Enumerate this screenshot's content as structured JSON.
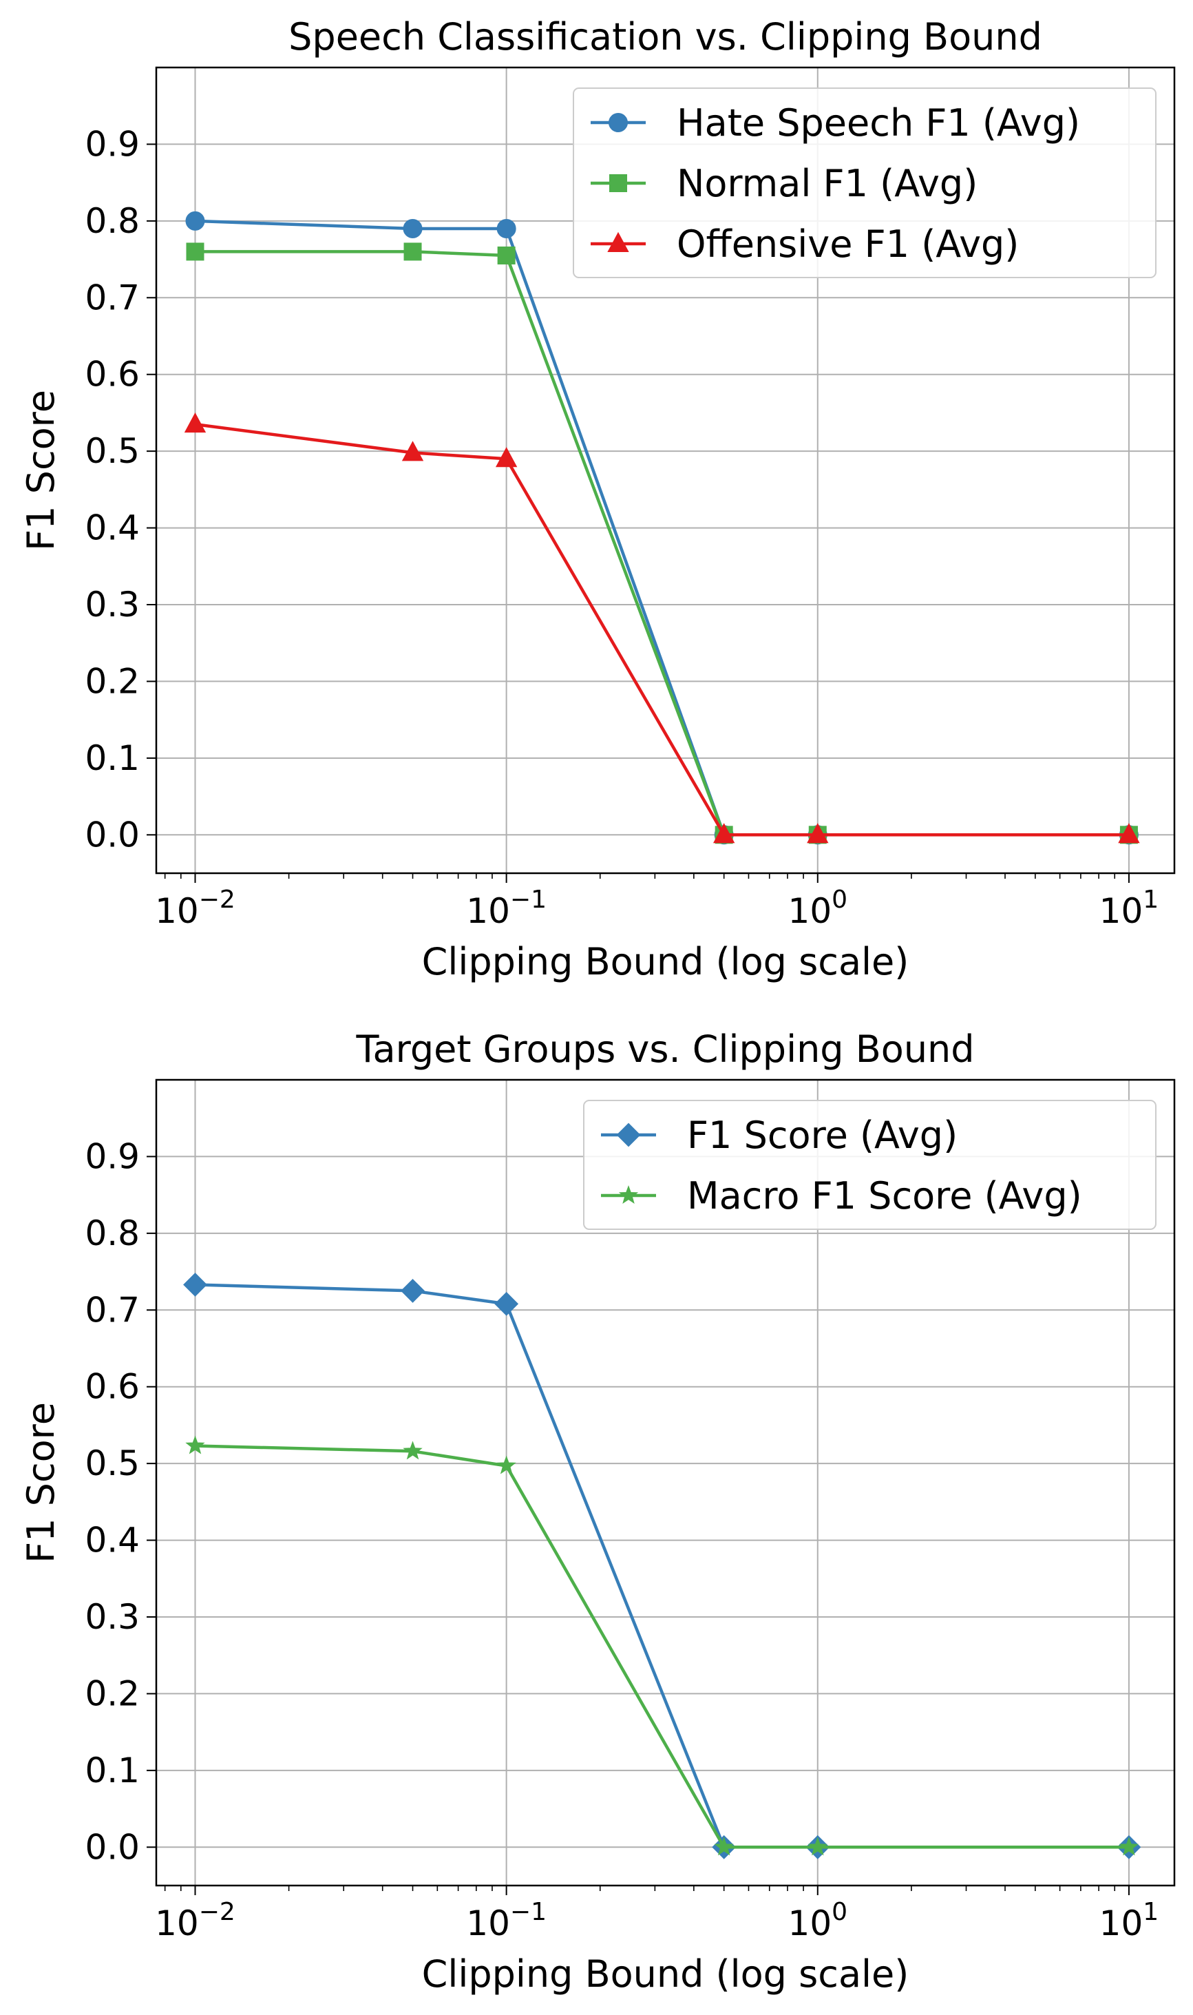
{
  "chart_data": [
    {
      "type": "line",
      "title": "Speech Classification vs. Clipping Bound",
      "xlabel": "Clipping Bound (log scale)",
      "ylabel": "F1 Score",
      "xscale": "log",
      "xlim": [
        0.0075,
        14
      ],
      "ylim": [
        -0.05,
        1.0
      ],
      "xticks": [
        {
          "value": 0.01,
          "base": "10",
          "exp": "−2"
        },
        {
          "value": 0.1,
          "base": "10",
          "exp": "−1"
        },
        {
          "value": 1,
          "base": "10",
          "exp": "0"
        },
        {
          "value": 10,
          "base": "10",
          "exp": "1"
        }
      ],
      "yticks": [
        "0.0",
        "0.1",
        "0.2",
        "0.3",
        "0.4",
        "0.5",
        "0.6",
        "0.7",
        "0.8",
        "0.9"
      ],
      "grid": true,
      "legend_position": "top-right",
      "x": [
        0.01,
        0.05,
        0.1,
        0.5,
        1,
        10
      ],
      "series": [
        {
          "name": "Hate Speech F1 (Avg)",
          "color": "#377eb8",
          "marker": "circle",
          "values": [
            0.8,
            0.79,
            0.79,
            0.0,
            0.0,
            0.0
          ]
        },
        {
          "name": "Normal F1 (Avg)",
          "color": "#4daf4a",
          "marker": "square",
          "values": [
            0.76,
            0.76,
            0.755,
            0.0,
            0.0,
            0.0
          ]
        },
        {
          "name": "Offensive F1 (Avg)",
          "color": "#e41a1c",
          "marker": "triangle",
          "values": [
            0.535,
            0.498,
            0.49,
            0.0,
            0.0,
            0.0
          ]
        }
      ]
    },
    {
      "type": "line",
      "title": "Target Groups vs. Clipping Bound",
      "xlabel": "Clipping Bound (log scale)",
      "ylabel": "F1 Score",
      "xscale": "log",
      "xlim": [
        0.0075,
        14
      ],
      "ylim": [
        -0.05,
        1.0
      ],
      "xticks": [
        {
          "value": 0.01,
          "base": "10",
          "exp": "−2"
        },
        {
          "value": 0.1,
          "base": "10",
          "exp": "−1"
        },
        {
          "value": 1,
          "base": "10",
          "exp": "0"
        },
        {
          "value": 10,
          "base": "10",
          "exp": "1"
        }
      ],
      "yticks": [
        "0.0",
        "0.1",
        "0.2",
        "0.3",
        "0.4",
        "0.5",
        "0.6",
        "0.7",
        "0.8",
        "0.9"
      ],
      "grid": true,
      "legend_position": "top-right",
      "x": [
        0.01,
        0.05,
        0.1,
        0.5,
        1,
        10
      ],
      "series": [
        {
          "name": "F1 Score (Avg)",
          "color": "#377eb8",
          "marker": "diamond",
          "values": [
            0.733,
            0.725,
            0.708,
            0.0,
            0.0,
            0.0
          ]
        },
        {
          "name": "Macro F1 Score (Avg)",
          "color": "#4daf4a",
          "marker": "star",
          "values": [
            0.523,
            0.516,
            0.497,
            0.0,
            0.0,
            0.0
          ]
        }
      ]
    }
  ]
}
